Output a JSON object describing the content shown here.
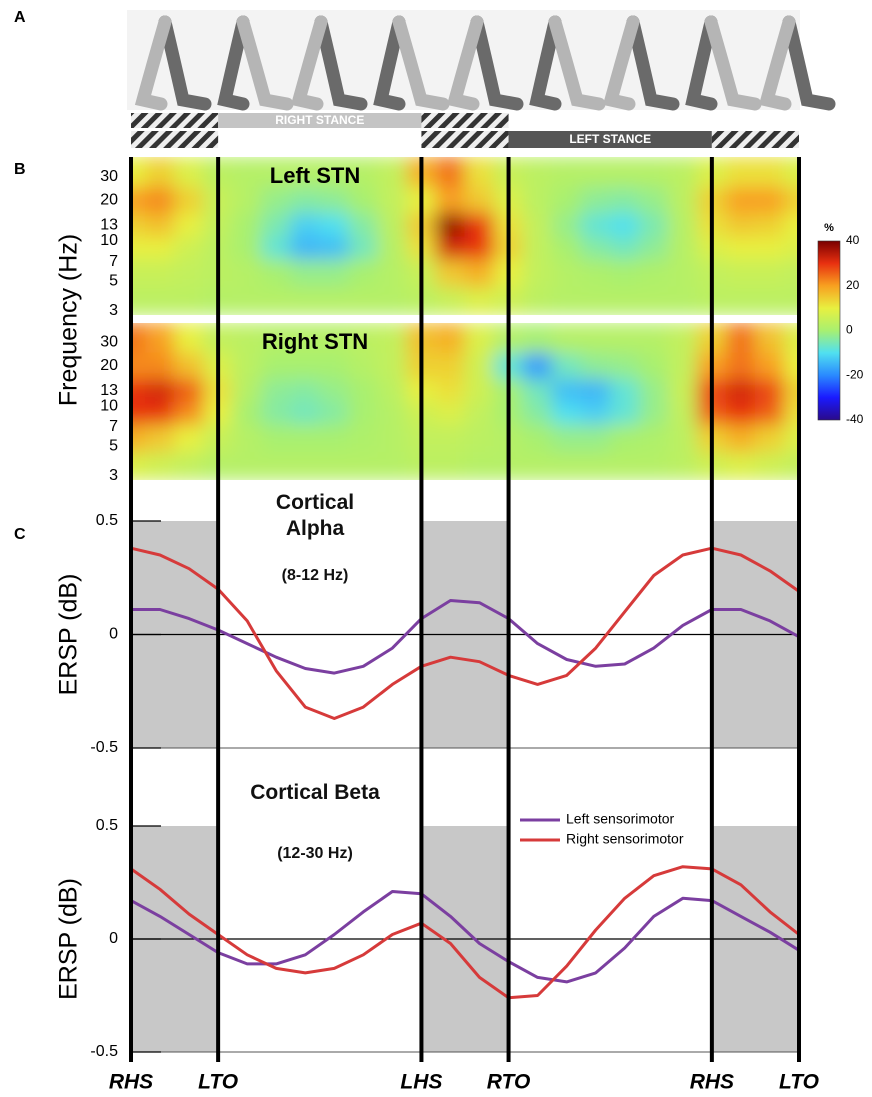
{
  "panels": [
    "A",
    "B",
    "C"
  ],
  "gait": {
    "xlim": [
      0,
      115
    ],
    "events": [
      {
        "label": "RHS",
        "x": 0
      },
      {
        "label": "LTO",
        "x": 15
      },
      {
        "label": "LHS",
        "x": 50
      },
      {
        "label": "RTO",
        "x": 65
      },
      {
        "label": "RHS",
        "x": 100
      },
      {
        "label": "LTO",
        "x": 115
      }
    ],
    "stance": [
      "RIGHT STANCE",
      "LEFT STANCE"
    ]
  },
  "frequency_axis": {
    "label": "Frequency (Hz)",
    "ticks": [
      3,
      5,
      7,
      10,
      13,
      20,
      30
    ],
    "ylim": [
      2.8,
      42
    ],
    "log": true
  },
  "colorbar": {
    "label": "%",
    "zlim": [
      -40,
      40
    ],
    "ticks": [
      40,
      20,
      0,
      -20,
      -40
    ],
    "colormap": [
      "#2a0a8a",
      "#1a1aff",
      "#2a8aff",
      "#50e0f0",
      "#a8f070",
      "#e8f040",
      "#f8a020",
      "#e83010",
      "#7a0000"
    ]
  },
  "chart_data": [
    {
      "type": "heatmap",
      "title": "Left STN",
      "x": [
        0,
        5,
        10,
        15,
        20,
        25,
        30,
        35,
        40,
        45,
        50,
        55,
        60,
        65,
        70,
        75,
        80,
        85,
        90,
        95,
        100,
        105,
        110,
        115
      ],
      "y": [
        3.5,
        6,
        9,
        13,
        20,
        32
      ],
      "z": [
        [
          3,
          3,
          3,
          2,
          2,
          2,
          2,
          2,
          2,
          2,
          3,
          5,
          8,
          6,
          3,
          2,
          2,
          2,
          2,
          2,
          3,
          3,
          3,
          3
        ],
        [
          5,
          5,
          4,
          3,
          2,
          0,
          -2,
          -2,
          0,
          2,
          5,
          15,
          18,
          10,
          4,
          2,
          1,
          0,
          1,
          2,
          4,
          5,
          5,
          4
        ],
        [
          10,
          10,
          6,
          3,
          0,
          -8,
          -15,
          -14,
          -6,
          2,
          12,
          32,
          30,
          14,
          4,
          0,
          -4,
          -6,
          -3,
          2,
          8,
          10,
          10,
          8
        ],
        [
          14,
          16,
          10,
          4,
          0,
          -5,
          -12,
          -10,
          -4,
          3,
          15,
          38,
          30,
          12,
          4,
          -2,
          -8,
          -10,
          -5,
          2,
          12,
          15,
          14,
          10
        ],
        [
          20,
          22,
          14,
          5,
          2,
          -2,
          -4,
          -3,
          0,
          4,
          10,
          20,
          15,
          8,
          3,
          0,
          -3,
          -4,
          -2,
          3,
          14,
          20,
          20,
          14
        ],
        [
          10,
          14,
          8,
          3,
          2,
          2,
          2,
          2,
          2,
          4,
          18,
          24,
          12,
          5,
          3,
          2,
          2,
          2,
          2,
          3,
          8,
          12,
          12,
          8
        ]
      ]
    },
    {
      "type": "heatmap",
      "title": "Right STN",
      "x": [
        0,
        5,
        10,
        15,
        20,
        25,
        30,
        35,
        40,
        45,
        50,
        55,
        60,
        65,
        70,
        75,
        80,
        85,
        90,
        95,
        100,
        105,
        110,
        115
      ],
      "y": [
        3.5,
        6,
        9,
        13,
        20,
        32
      ],
      "z": [
        [
          8,
          6,
          4,
          2,
          2,
          2,
          2,
          2,
          2,
          2,
          3,
          3,
          2,
          2,
          2,
          2,
          2,
          2,
          2,
          3,
          6,
          8,
          6,
          4
        ],
        [
          18,
          15,
          10,
          5,
          2,
          0,
          0,
          0,
          1,
          2,
          4,
          4,
          3,
          2,
          0,
          -2,
          -2,
          0,
          1,
          3,
          14,
          18,
          14,
          8
        ],
        [
          30,
          30,
          22,
          10,
          0,
          -4,
          -6,
          -4,
          0,
          2,
          6,
          8,
          4,
          0,
          -4,
          -10,
          -12,
          -8,
          -2,
          4,
          26,
          30,
          26,
          12
        ],
        [
          30,
          32,
          26,
          12,
          2,
          -3,
          -4,
          -2,
          0,
          3,
          10,
          12,
          6,
          0,
          -6,
          -14,
          -15,
          -8,
          -2,
          5,
          28,
          32,
          28,
          14
        ],
        [
          22,
          22,
          16,
          8,
          3,
          0,
          0,
          0,
          2,
          4,
          14,
          14,
          6,
          -8,
          -18,
          -6,
          -3,
          -2,
          0,
          4,
          20,
          24,
          20,
          10
        ],
        [
          24,
          20,
          10,
          4,
          3,
          2,
          2,
          2,
          3,
          4,
          16,
          18,
          8,
          2,
          0,
          2,
          2,
          2,
          2,
          4,
          14,
          24,
          16,
          8
        ]
      ]
    },
    {
      "type": "line",
      "title": "Cortical Alpha",
      "subtitle": "(8-12 Hz)",
      "ylabel": "ERSP (dB)",
      "ylim": [
        -0.5,
        0.5
      ],
      "yticks": [
        -0.5,
        0,
        0.5
      ],
      "shade_color": "#c8c8c8",
      "x": [
        0,
        5,
        10,
        15,
        20,
        25,
        30,
        35,
        40,
        45,
        50,
        55,
        60,
        65,
        70,
        75,
        80,
        85,
        90,
        95,
        100,
        105,
        110,
        115
      ],
      "series": [
        {
          "name": "Left sensorimotor",
          "color": "#7b3fa0",
          "values": [
            0.11,
            0.11,
            0.07,
            0.02,
            -0.04,
            -0.1,
            -0.15,
            -0.17,
            -0.14,
            -0.06,
            0.07,
            0.15,
            0.14,
            0.07,
            -0.04,
            -0.11,
            -0.14,
            -0.13,
            -0.06,
            0.04,
            0.11,
            0.11,
            0.06,
            -0.01
          ]
        },
        {
          "name": "Right sensorimotor",
          "color": "#d63a3a",
          "values": [
            0.38,
            0.35,
            0.29,
            0.2,
            0.06,
            -0.16,
            -0.32,
            -0.37,
            -0.32,
            -0.22,
            -0.14,
            -0.1,
            -0.12,
            -0.18,
            -0.22,
            -0.18,
            -0.06,
            0.1,
            0.26,
            0.35,
            0.38,
            0.35,
            0.28,
            0.19
          ]
        }
      ]
    },
    {
      "type": "line",
      "title": "Cortical Beta",
      "subtitle": "(12-30 Hz)",
      "ylabel": "ERSP (dB)",
      "ylim": [
        -0.5,
        0.5
      ],
      "yticks": [
        -0.5,
        0,
        0.5
      ],
      "shade_color": "#c8c8c8",
      "legend": "center right",
      "x": [
        0,
        5,
        10,
        15,
        20,
        25,
        30,
        35,
        40,
        45,
        50,
        55,
        60,
        65,
        70,
        75,
        80,
        85,
        90,
        95,
        100,
        105,
        110,
        115
      ],
      "series": [
        {
          "name": "Left sensorimotor",
          "color": "#7b3fa0",
          "values": [
            0.17,
            0.1,
            0.02,
            -0.06,
            -0.11,
            -0.11,
            -0.07,
            0.02,
            0.12,
            0.21,
            0.2,
            0.1,
            -0.02,
            -0.1,
            -0.17,
            -0.19,
            -0.15,
            -0.04,
            0.1,
            0.18,
            0.17,
            0.1,
            0.03,
            -0.05
          ]
        },
        {
          "name": "Right sensorimotor",
          "color": "#d63a3a",
          "values": [
            0.31,
            0.22,
            0.11,
            0.02,
            -0.07,
            -0.13,
            -0.15,
            -0.13,
            -0.07,
            0.02,
            0.07,
            -0.02,
            -0.17,
            -0.26,
            -0.25,
            -0.12,
            0.04,
            0.18,
            0.28,
            0.32,
            0.31,
            0.24,
            0.12,
            0.02
          ]
        }
      ]
    }
  ]
}
